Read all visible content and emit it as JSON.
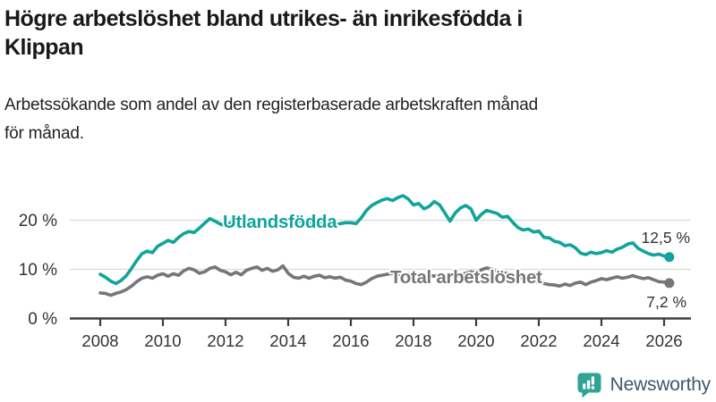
{
  "header": {
    "title_lines": [
      "Högre arbetslöshet bland utrikes- än inrikesfödda i",
      "Klippan"
    ],
    "subtitle_lines": [
      "Arbetssökande som andel av den registerbaserade arbetskraften månad",
      "för månad."
    ]
  },
  "chart_data": {
    "type": "line",
    "title": "Arbetssökande som andel av den registerbaserade arbetskraften månad för månad",
    "x_start": 2008.0,
    "x_step": 0.166667,
    "x_tick_years": [
      2008,
      2010,
      2012,
      2014,
      2016,
      2018,
      2020,
      2022,
      2024,
      2026
    ],
    "x_tick_labels": [
      "2008",
      "2010",
      "2012",
      "2014",
      "2016",
      "2018",
      "2020",
      "2022",
      "2024",
      "2026"
    ],
    "y_ticks": [
      {
        "value": 20,
        "label": "20 %"
      },
      {
        "value": 10,
        "label": "10 %"
      },
      {
        "value": 0,
        "label": "0 %"
      }
    ],
    "ylim": [
      0,
      27
    ],
    "xlim": [
      2007.2,
      2026.9
    ],
    "grid": "horizontal",
    "legend_position": "inline-on-line",
    "colors": {
      "axis": "#3d3d3d",
      "grid": "#d9d9d9",
      "tick_text": "#333333",
      "value_label": "#333333"
    },
    "series": [
      {
        "id": "utlandsfodda",
        "name": "Utlandsfödda",
        "color": "#10a49a",
        "end_label": "12,5 %",
        "end_value": 12.5,
        "values": [
          9.0,
          8.4,
          7.6,
          7.1,
          7.7,
          8.7,
          10.2,
          11.8,
          13.2,
          13.7,
          13.4,
          14.7,
          15.3,
          15.9,
          15.5,
          16.5,
          17.3,
          17.7,
          17.5,
          18.4,
          19.4,
          20.3,
          19.8,
          19.2,
          18.9,
          19.5,
          20.6,
          20.2,
          19.7,
          20.0,
          19.6,
          20.2,
          19.8,
          20.3,
          19.9,
          20.4,
          20.0,
          19.6,
          19.9,
          19.4,
          19.7,
          19.3,
          19.6,
          19.2,
          19.4,
          19.0,
          19.3,
          19.5,
          19.5,
          19.3,
          20.5,
          22.0,
          23.0,
          23.6,
          24.1,
          24.4,
          24.0,
          24.6,
          25.0,
          24.3,
          23.1,
          23.4,
          22.3,
          22.8,
          23.8,
          23.1,
          21.5,
          19.8,
          21.5,
          22.5,
          23.0,
          22.3,
          20.0,
          21.2,
          22.0,
          21.7,
          21.4,
          20.6,
          20.8,
          19.6,
          18.5,
          18.0,
          18.2,
          17.6,
          17.8,
          16.5,
          16.4,
          15.7,
          15.5,
          14.8,
          15.0,
          14.4,
          13.3,
          13.0,
          13.5,
          13.2,
          13.4,
          13.8,
          13.5,
          14.1,
          14.5,
          15.1,
          15.4,
          14.3,
          13.7,
          13.2,
          12.9,
          13.1,
          12.7,
          12.5
        ]
      },
      {
        "id": "total-arbetsloshet",
        "name": "Total arbetslöshet",
        "color": "#75767a",
        "end_label": "7,2 %",
        "end_value": 7.2,
        "values": [
          5.2,
          5.1,
          4.7,
          5.1,
          5.4,
          5.9,
          6.6,
          7.5,
          8.2,
          8.5,
          8.2,
          8.8,
          9.1,
          8.6,
          9.1,
          8.8,
          9.7,
          10.2,
          9.9,
          9.2,
          9.5,
          10.2,
          10.5,
          9.8,
          9.5,
          8.9,
          9.4,
          8.9,
          9.8,
          10.2,
          10.5,
          9.8,
          10.2,
          9.6,
          9.9,
          10.7,
          9.2,
          8.4,
          8.2,
          8.6,
          8.2,
          8.6,
          8.8,
          8.3,
          8.5,
          8.2,
          8.4,
          7.8,
          7.6,
          7.1,
          6.9,
          7.4,
          8.1,
          8.6,
          8.8,
          9.0,
          9.2,
          9.0,
          8.8,
          9.1,
          8.9,
          8.7,
          9.0,
          8.8,
          8.6,
          8.9,
          8.6,
          8.9,
          8.5,
          8.8,
          9.2,
          9.5,
          9.3,
          9.9,
          10.3,
          10.0,
          9.7,
          9.4,
          9.1,
          8.8,
          8.4,
          8.1,
          7.8,
          7.6,
          7.4,
          7.1,
          6.9,
          6.8,
          6.6,
          7.0,
          6.7,
          7.2,
          7.4,
          6.9,
          7.4,
          7.7,
          8.1,
          7.9,
          8.2,
          8.5,
          8.2,
          8.4,
          8.7,
          8.4,
          8.1,
          8.3,
          7.9,
          7.5,
          7.4,
          7.2
        ]
      }
    ]
  },
  "footer": {
    "brand": "Newsworthy",
    "logo_icon": "bar-chart-speech-bubble",
    "brand_teal": "#2fa394",
    "brand_text_color": "#41566b"
  }
}
